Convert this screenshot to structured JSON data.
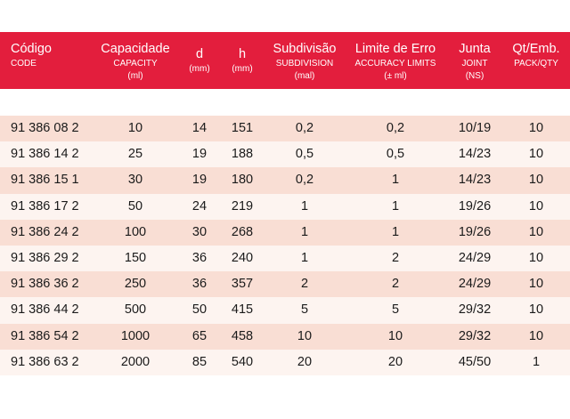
{
  "header": {
    "code": {
      "main": "Código",
      "sub": "CODE"
    },
    "capacity": {
      "main": "Capacidade",
      "sub": "CAPACITY",
      "unit": "(ml)"
    },
    "d": {
      "main": "d",
      "unit": "(mm)"
    },
    "h": {
      "main": "h",
      "unit": "(mm)"
    },
    "subdivision": {
      "main": "Subdivisão",
      "sub": "SUBDIVISION",
      "unit": "(mal)"
    },
    "accuracy": {
      "main": "Limite de Erro",
      "sub": "ACCURACY LIMITS",
      "unit": "(± ml)"
    },
    "joint": {
      "main": "Junta",
      "sub": "JOINT",
      "unit": "(NS)"
    },
    "pack": {
      "main": "Qt/Emb.",
      "sub": "PACK/QTY"
    }
  },
  "rows": [
    {
      "code": "91 386 08 2",
      "capacity": "10",
      "d": "14",
      "h": "151",
      "subdivision": "0,2",
      "accuracy": "0,2",
      "joint": "10/19",
      "pack": "10"
    },
    {
      "code": "91 386 14 2",
      "capacity": "25",
      "d": "19",
      "h": "188",
      "subdivision": "0,5",
      "accuracy": "0,5",
      "joint": "14/23",
      "pack": "10"
    },
    {
      "code": "91 386 15 1",
      "capacity": "30",
      "d": "19",
      "h": "180",
      "subdivision": "0,2",
      "accuracy": "1",
      "joint": "14/23",
      "pack": "10"
    },
    {
      "code": "91 386 17 2",
      "capacity": "50",
      "d": "24",
      "h": "219",
      "subdivision": "1",
      "accuracy": "1",
      "joint": "19/26",
      "pack": "10"
    },
    {
      "code": "91 386 24 2",
      "capacity": "100",
      "d": "30",
      "h": "268",
      "subdivision": "1",
      "accuracy": "1",
      "joint": "19/26",
      "pack": "10"
    },
    {
      "code": "91 386 29 2",
      "capacity": "150",
      "d": "36",
      "h": "240",
      "subdivision": "1",
      "accuracy": "2",
      "joint": "24/29",
      "pack": "10"
    },
    {
      "code": "91 386 36 2",
      "capacity": "250",
      "d": "36",
      "h": "357",
      "subdivision": "2",
      "accuracy": "2",
      "joint": "24/29",
      "pack": "10"
    },
    {
      "code": "91 386 44 2",
      "capacity": "500",
      "d": "50",
      "h": "415",
      "subdivision": "5",
      "accuracy": "5",
      "joint": "29/32",
      "pack": "10"
    },
    {
      "code": "91 386 54 2",
      "capacity": "1000",
      "d": "65",
      "h": "458",
      "subdivision": "10",
      "accuracy": "10",
      "joint": "29/32",
      "pack": "10"
    },
    {
      "code": "91 386 63 2",
      "capacity": "2000",
      "d": "85",
      "h": "540",
      "subdivision": "20",
      "accuracy": "20",
      "joint": "45/50",
      "pack": "1"
    }
  ],
  "colors": {
    "header_bg": "#e31e3d",
    "row_shade": "#f9ded4",
    "row_plain": "#fdf4f0"
  }
}
